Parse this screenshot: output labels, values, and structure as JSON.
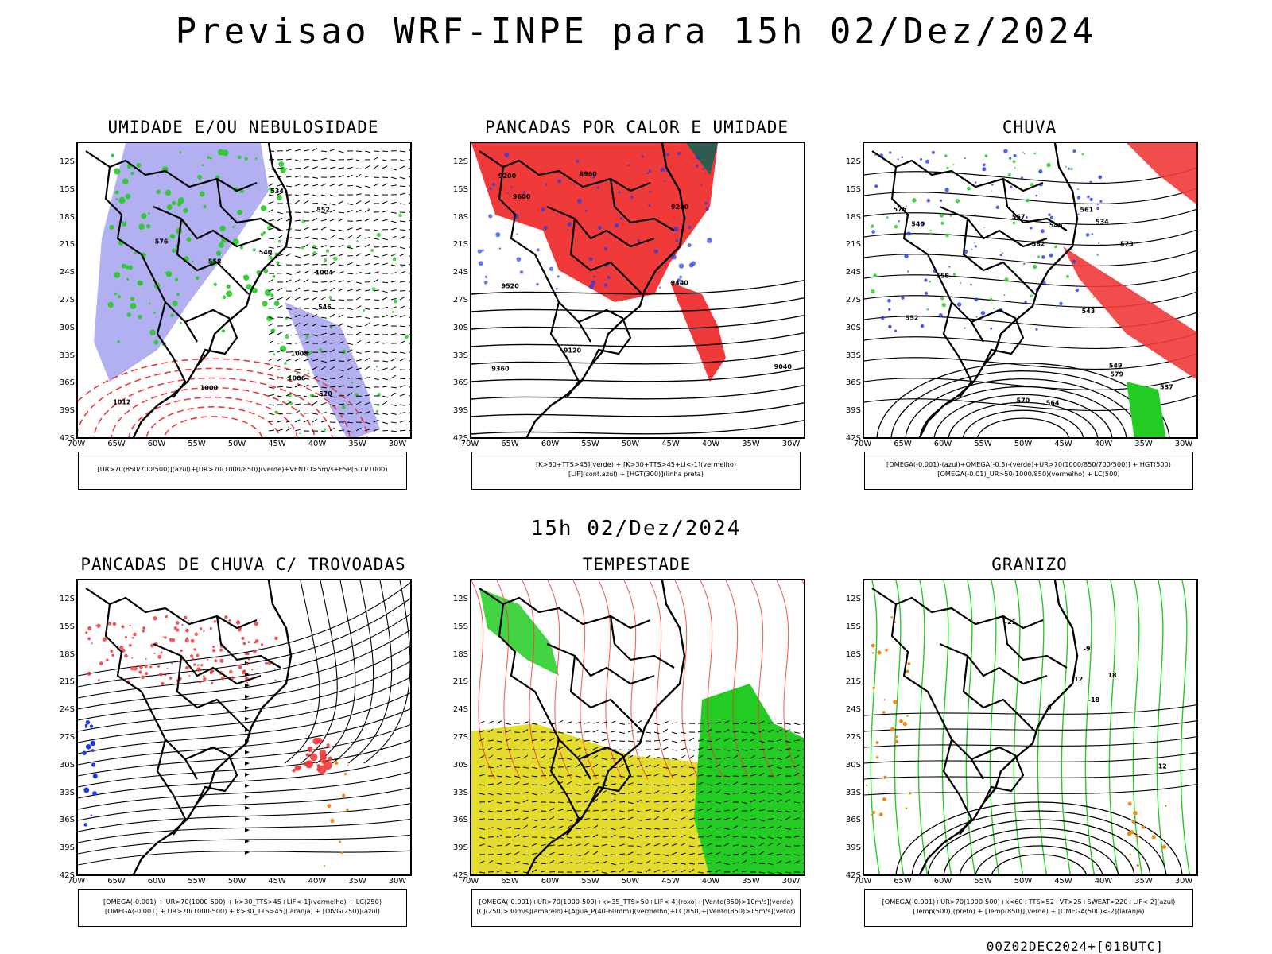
{
  "title": "Previsao WRF-INPE  para 15h 02/Dez/2024",
  "subtitle": "15h 02/Dez/2024",
  "footer": "00Z02DEC2024+[018UTC]",
  "axes": {
    "lat_labels": [
      "12S",
      "15S",
      "18S",
      "21S",
      "24S",
      "27S",
      "30S",
      "33S",
      "36S",
      "39S",
      "42S"
    ],
    "lon_labels": [
      "70W",
      "65W",
      "60W",
      "55W",
      "50W",
      "45W",
      "40W",
      "35W",
      "30W"
    ]
  },
  "colors": {
    "blue_fill": "#a6a2f0",
    "red": "#f03a3a",
    "green": "#22cc22",
    "blue": "#1f3be8",
    "yellow": "#e4dc2c",
    "orange": "#f08a1a",
    "teal": "#2e5a50"
  },
  "panels": [
    {
      "title": "UMIDADE E/OU NEBULOSIDADE",
      "legend": [
        "[UR>70(850/700/500)](azul)+[UR>70(1000/850)](verde)+VENTO>5m/s+ESP(500/1000)"
      ],
      "labels": [
        "1004",
        "1008",
        "1012",
        "570",
        "576",
        "1000",
        "1006",
        "558",
        "552",
        "546",
        "540",
        "534"
      ]
    },
    {
      "title": "PANCADAS POR CALOR E UMIDADE",
      "legend": [
        "[K>30+TTS>45](verde) + [K>30+TTS>45+LI<-1](vermelho)",
        "[LIF](cont.azul) + [HGT(300)](linha preta)"
      ],
      "labels": [
        "9600",
        "9520",
        "9440",
        "9360",
        "9280",
        "9200",
        "9120",
        "9040",
        "8960"
      ]
    },
    {
      "title": "CHUVA",
      "legend": [
        "[OMEGA(-0.001)-(azul)+OMEGA(-0.3)-(verde)+UR>70(1000/850/700/500)] + HGT(500)",
        "[OMEGA(-0.01)_UR>50(1000/850)(vermelho) + LC(500)"
      ],
      "labels": [
        "582",
        "579",
        "576",
        "573",
        "570",
        "567",
        "564",
        "561",
        "558",
        "552",
        "549",
        "546",
        "543",
        "540",
        "537",
        "534"
      ]
    },
    {
      "title": "PANCADAS DE CHUVA C/ TROVOADAS",
      "legend": [
        "[OMEGA(-0.001) + UR>70(1000-500) + k>30_TTS>45+LIF<-1](vermelho) + LC(250)",
        "[OMEGA(-0.001) + UR>70(1000-500) + k>30_TTS>45](laranja) + [DIVG(250)](azul)"
      ],
      "labels": []
    },
    {
      "title": "TEMPESTADE",
      "legend": [
        "[OMEGA(-0.001)+UR>70(1000-500)+k>35_TTS>50+LIF<-4](roxo)+[Vento(850)>10m/s](verde)",
        "[CJ(250)>30m/s](amarelo)+[Agua_P(40-60mm)](vermelho)+LC(850)+[Vento(850)>15m/s](vetor)"
      ],
      "labels": []
    },
    {
      "title": "GRANIZO",
      "legend": [
        "[OMEGA(-0.001)+UR>70(1000-500)+k<60+TTS>52+VT>25+SWEAT>220+LIF<-2](azul)",
        "[Temp(500)](preto) + [Temp(850)](verde) + [OMEGA(500)<-2](laranja)"
      ],
      "labels": [
        "-18",
        "-12",
        "-21",
        "-9",
        "-6",
        "12",
        "18"
      ]
    }
  ]
}
